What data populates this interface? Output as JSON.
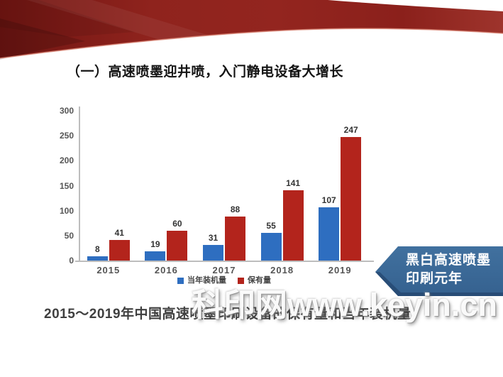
{
  "page": {
    "title": "（一）高速喷墨迎井喷，入门静电设备大增长",
    "caption": "2015～2019年中国高速喷墨印刷设备的保有量和当年装机量",
    "watermark": "科印网www.keyin.cn",
    "callout": {
      "line1": "黑白高速喷墨",
      "line2": "印刷元年",
      "fill": "#3a679c"
    }
  },
  "chart_data": {
    "type": "bar",
    "title": "",
    "categories": [
      "2015",
      "2016",
      "2017",
      "2018",
      "2019"
    ],
    "series": [
      {
        "name": "当年装机量",
        "color": "#2e6ec0",
        "values": [
          8,
          19,
          31,
          55,
          107
        ]
      },
      {
        "name": "保有量",
        "color": "#b3241c",
        "values": [
          41,
          60,
          88,
          141,
          247
        ]
      }
    ],
    "xlabel": "",
    "ylabel": "",
    "ylim": [
      0,
      300
    ],
    "yticks": [
      0,
      50,
      100,
      150,
      200,
      250,
      300
    ],
    "grid": false,
    "legend_position": "bottom-center",
    "bar_value_labels": true
  },
  "theme": {
    "ribbon_red_dark": "#701512",
    "ribbon_red": "#93251f",
    "axis_color": "#bdbdbd",
    "tick_label_color": "#555555",
    "value_label_color": "#333333"
  }
}
